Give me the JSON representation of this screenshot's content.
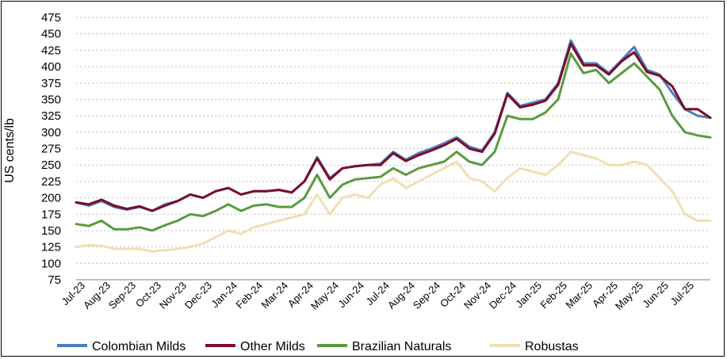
{
  "chart_data": {
    "type": "line",
    "title": "",
    "xlabel": "",
    "ylabel": "US cents/lb",
    "ylim": [
      75,
      475
    ],
    "yticks": [
      475,
      450,
      425,
      400,
      375,
      350,
      325,
      300,
      275,
      250,
      225,
      200,
      175,
      150,
      125,
      100,
      75
    ],
    "x_ticks": [
      "Jul-23",
      "Aug-23",
      "Sep-23",
      "Oct-23",
      "Nov-23",
      "Dec-23",
      "Jan-24",
      "Feb-24",
      "Mar-24",
      "Apr-24",
      "May-24",
      "Jun-24",
      "Jul-24",
      "Aug-24",
      "Sep-24",
      "Oct-24",
      "Nov-24",
      "Dec-24",
      "Jan-25",
      "Feb-25",
      "Mar-25",
      "Apr-25",
      "May-25",
      "Jun-25",
      "Jul-25"
    ],
    "x": [
      "Jul-23",
      "mid Jul-23",
      "Aug-23",
      "mid Aug-23",
      "Sep-23",
      "mid Sep-23",
      "Oct-23",
      "mid Oct-23",
      "Nov-23",
      "mid Nov-23",
      "Dec-23",
      "mid Dec-23",
      "Jan-24",
      "mid Jan-24",
      "Feb-24",
      "mid Feb-24",
      "Mar-24",
      "mid Mar-24",
      "Apr-24",
      "mid Apr-24",
      "May-24",
      "mid May-24",
      "Jun-24",
      "mid Jun-24",
      "Jul-24",
      "mid Jul-24",
      "Aug-24",
      "mid Aug-24",
      "Sep-24",
      "mid Sep-24",
      "Oct-24",
      "mid Oct-24",
      "Nov-24",
      "mid Nov-24",
      "Dec-24",
      "mid Dec-24",
      "Jan-25",
      "mid Jan-25",
      "Feb-25",
      "mid Feb-25",
      "Mar-25",
      "mid Mar-25",
      "Apr-25",
      "mid Apr-25",
      "May-25",
      "mid May-25",
      "Jun-25",
      "mid Jun-25",
      "Jul-25",
      "mid Jul-25",
      "end Jul-25"
    ],
    "grid": true,
    "legend_position": "bottom",
    "series": [
      {
        "name": "Colombian Milds",
        "color": "#4a7ebb",
        "values": [
          193,
          188,
          195,
          186,
          182,
          186,
          180,
          190,
          195,
          205,
          200,
          210,
          215,
          205,
          210,
          210,
          212,
          208,
          225,
          262,
          230,
          245,
          248,
          250,
          252,
          270,
          258,
          268,
          275,
          283,
          292,
          278,
          272,
          300,
          360,
          340,
          345,
          350,
          375,
          440,
          405,
          405,
          390,
          410,
          430,
          395,
          388,
          360,
          335,
          325,
          322
        ]
      },
      {
        "name": "Other Milds",
        "color": "#7b0c2a",
        "values": [
          193,
          190,
          197,
          188,
          183,
          187,
          180,
          188,
          195,
          205,
          200,
          210,
          215,
          205,
          210,
          210,
          212,
          208,
          225,
          260,
          228,
          245,
          248,
          250,
          250,
          268,
          256,
          265,
          272,
          280,
          290,
          275,
          270,
          298,
          358,
          338,
          342,
          348,
          372,
          435,
          402,
          402,
          388,
          408,
          422,
          392,
          386,
          370,
          335,
          335,
          322
        ]
      },
      {
        "name": "Brazilian Naturals",
        "color": "#5b9a3e",
        "values": [
          160,
          157,
          165,
          152,
          152,
          155,
          150,
          158,
          165,
          175,
          172,
          180,
          190,
          180,
          188,
          190,
          186,
          186,
          200,
          235,
          200,
          220,
          228,
          230,
          232,
          245,
          235,
          245,
          250,
          255,
          270,
          255,
          250,
          270,
          325,
          320,
          320,
          330,
          350,
          420,
          390,
          395,
          375,
          390,
          405,
          385,
          365,
          325,
          300,
          295,
          292
        ]
      },
      {
        "name": "Robustas",
        "color": "#f0dfb4",
        "values": [
          125,
          128,
          127,
          122,
          122,
          122,
          118,
          120,
          122,
          125,
          130,
          140,
          150,
          145,
          155,
          160,
          165,
          170,
          175,
          205,
          175,
          200,
          205,
          200,
          220,
          230,
          215,
          225,
          235,
          245,
          255,
          230,
          225,
          210,
          230,
          245,
          240,
          235,
          250,
          270,
          265,
          260,
          250,
          250,
          255,
          250,
          230,
          210,
          175,
          165,
          165
        ]
      }
    ]
  }
}
